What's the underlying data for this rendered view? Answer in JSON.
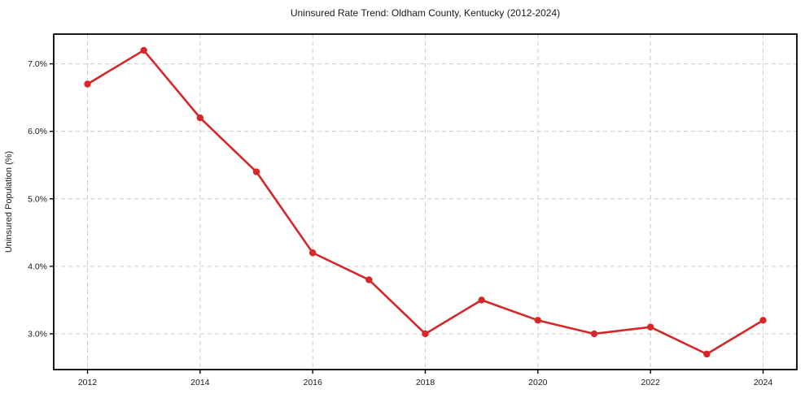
{
  "chart_data": {
    "type": "line",
    "title": "Uninsured Rate Trend: Oldham County, Kentucky (2012-2024)",
    "xlabel": "",
    "ylabel": "Uninsured Population (%)",
    "x": [
      2012,
      2013,
      2014,
      2015,
      2016,
      2017,
      2018,
      2019,
      2020,
      2021,
      2022,
      2023,
      2024
    ],
    "values": [
      6.7,
      7.2,
      6.2,
      5.4,
      4.2,
      3.8,
      3.0,
      3.5,
      3.2,
      3.0,
      3.1,
      2.7,
      3.2
    ],
    "series_name": "Uninsured rate",
    "xlim": [
      2011.4,
      2024.6
    ],
    "ylim": [
      2.47,
      7.44
    ],
    "x_ticks": [
      2012,
      2014,
      2016,
      2018,
      2020,
      2022,
      2024
    ],
    "x_tick_labels": [
      "2012",
      "2014",
      "2016",
      "2018",
      "2020",
      "2022",
      "2024"
    ],
    "y_ticks": [
      3.0,
      4.0,
      5.0,
      6.0,
      7.0
    ],
    "y_tick_labels": [
      "3.0%",
      "4.0%",
      "5.0%",
      "6.0%",
      "7.0%"
    ],
    "grid": true,
    "legend": "none",
    "colors": {
      "line": "#d62728",
      "marker": "#d62728",
      "grid": "#cccccc",
      "frame": "#000000",
      "text": "#1a1a1a",
      "background": "#ffffff"
    }
  }
}
